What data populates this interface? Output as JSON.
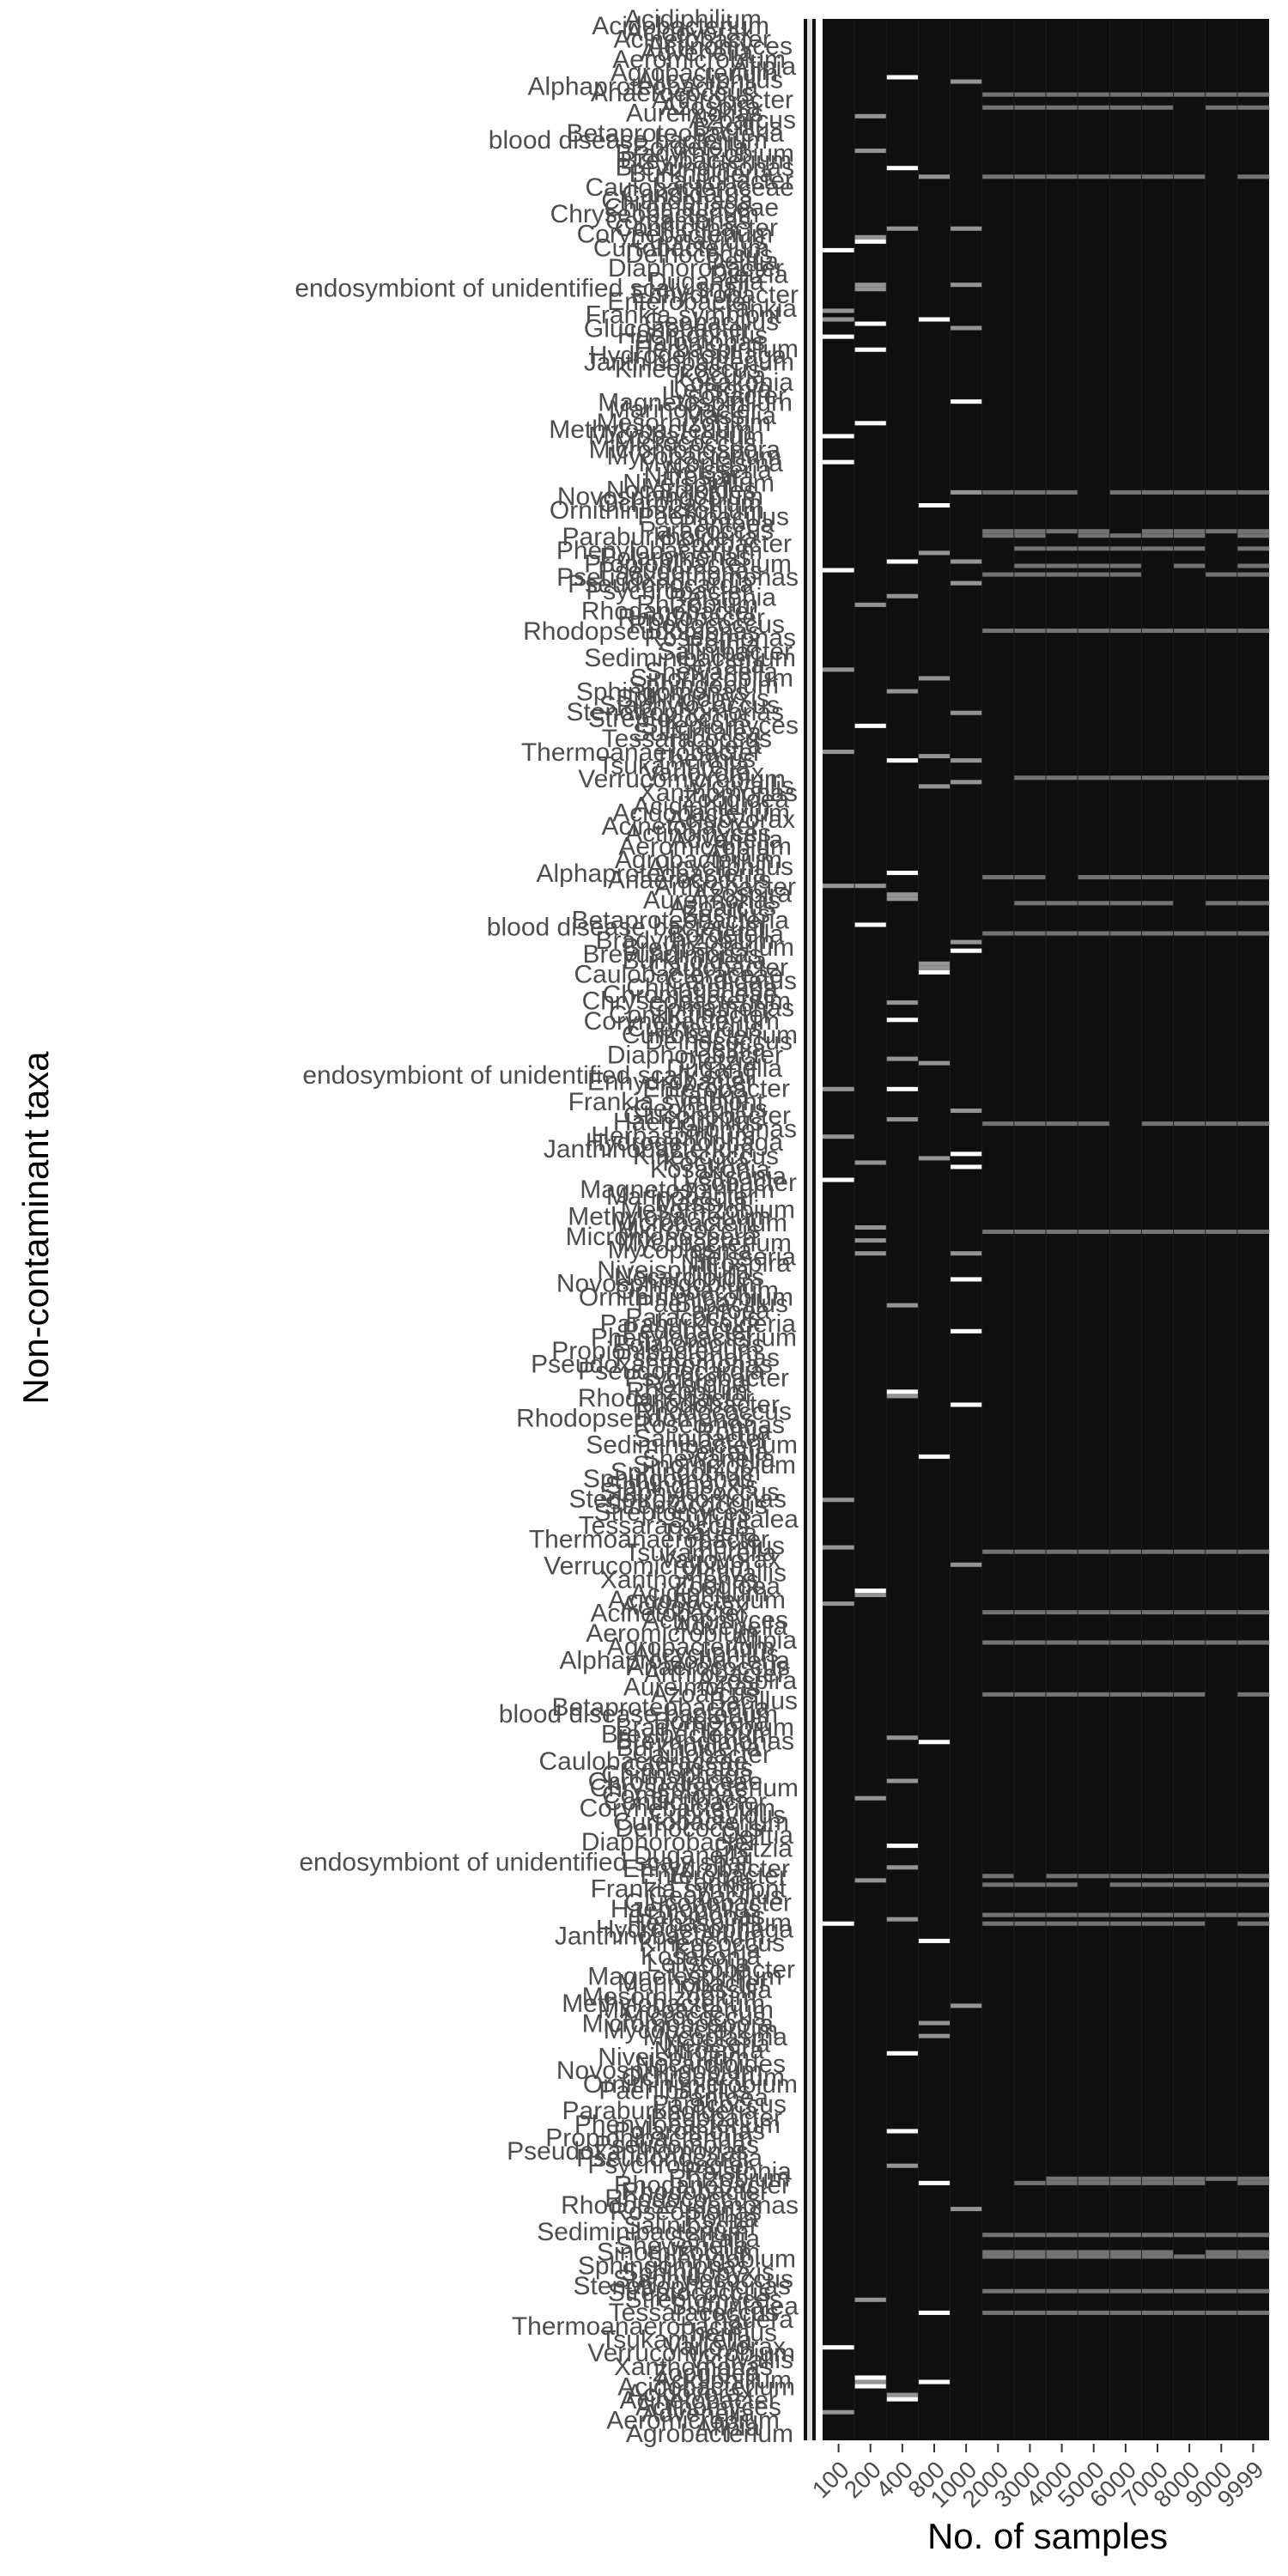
{
  "chart_data": {
    "type": "heatmap",
    "title": "",
    "xlabel": "No. of samples",
    "ylabel": "Non-contaminant taxa",
    "x_categories": [
      "100",
      "200",
      "400",
      "800",
      "1000",
      "2000",
      "3000",
      "4000",
      "5000",
      "6000",
      "7000",
      "8000",
      "9000",
      "9999"
    ],
    "y_tick_labels": [
      "Acidiphilium",
      "Acidobacterium",
      "Acidovorax",
      "Acinetobacter",
      "Actinomyces",
      "Advenella",
      "Aeromicrobium",
      "Afipia",
      "Agrobacterium",
      "Alicycliphilus",
      "Alphaproteobacteria",
      "Anaerococcus",
      "Arthrobacter",
      "Azospira",
      "Aureimonas",
      "Azoarcus",
      "Bacillus",
      "Betaproteobacteria",
      "blood disease bacterium",
      "Bordetella",
      "Bradyrhizobium",
      "Brevibacterium",
      "Brevundimonas",
      "Burkholderia",
      "Caulobacter",
      "Caulobacteraceae",
      "Candidatus",
      "Chitinophaga",
      "Chromatiaceae",
      "Chryseobacterium",
      "Comamonas",
      "Conflictibacter",
      "Corynebacterium",
      "Cupriavidus",
      "Curtobacterium",
      "Deinococcus",
      "Delftia",
      "Diaphorobacter",
      "Dietzia",
      "Duganella",
      "endosymbiont of unidentified scaly snail",
      "Enhydrobacter",
      "Enterobacter",
      "Frankia",
      "Frankia symbiont",
      "Geobacillus",
      "Gluconobacter",
      "Haemophilus",
      "Halomonas",
      "Herbaspirillum",
      "Hydrogenophaga",
      "Janthinobacterium",
      "Kineococcus",
      "Kocuria",
      "Kosakonia",
      "Leifsonia",
      "Lysobacter",
      "Magnetospirillum",
      "Marinobacter",
      "Massilia",
      "Mesorhizobium",
      "Methylobacterium",
      "Microbacterium",
      "Micrococcus",
      "Micromonospora",
      "Mycobacterium",
      "Mycoplasma",
      "Neisseria",
      "Nitrospira",
      "Niveispirillum",
      "Nocardioides",
      "Novosphingobium",
      "Ochrobactrum",
      "Ornithinimicrobium",
      "Paenibacillus",
      "Pantoea",
      "Paracoccus",
      "Paraburkholderia",
      "Pedobacter",
      "Phenylobacterium",
      "Polaromonas",
      "Propionibacterium",
      "Pseudomonas",
      "Pseudoxanthomonas",
      "Pseudonocardia",
      "Psychrobacter",
      "Ralstonia",
      "Rhizobium",
      "Rhodanobacter",
      "Rhodobacter",
      "Rhodococcus",
      "Rhodopseudomonas",
      "Roseomonas",
      "Rothia",
      "Salinibacter",
      "Sediminibacterium",
      "Serratia",
      "Shewanella",
      "Sinorhizobium",
      "Sphingobium",
      "Sphingomonas",
      "Sphingopyxis",
      "Staphylococcus",
      "Stenotrophomonas",
      "Streptococcus",
      "Streptomyces",
      "Sulfuritalea",
      "Tessaracoccus",
      "Thauera",
      "Thermoanaerobacter",
      "Thermus",
      "Tsukamurella",
      "Variovorax",
      "Verrucomicrobium",
      "Victivallis",
      "Xanthomonas",
      "Zoogloea"
    ],
    "legend": "none",
    "grid": true,
    "colors": {
      "background": "#0f0f0f",
      "cell_dark": "#101010",
      "cell_highlight": "#ffffff",
      "cell_gray": "#808080",
      "text": "#4d4d4d",
      "panel_border": "#ffffff"
    }
  }
}
